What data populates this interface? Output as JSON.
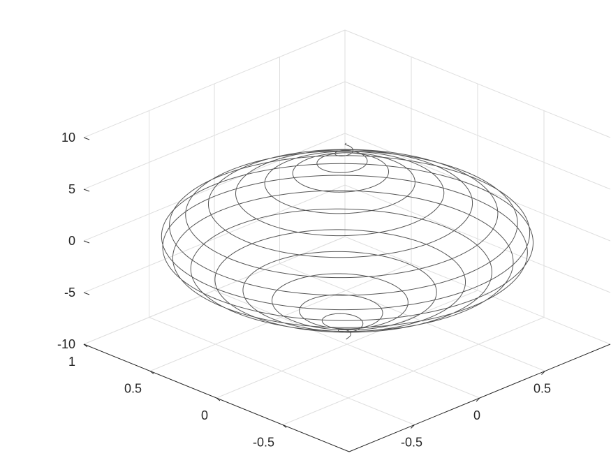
{
  "chart_data": {
    "type": "line3d",
    "title": "",
    "xlabel": "",
    "ylabel": "",
    "zlabel": "",
    "grid": true,
    "line_color": "#555555",
    "grid_color": "#dedede",
    "axis_color": "#262626",
    "xlim": [
      -1,
      1
    ],
    "ylim": [
      -1,
      1
    ],
    "zlim": [
      -10,
      10
    ],
    "x_ticks": [
      -0.5,
      0,
      0.5
    ],
    "x_tick_labels": [
      "-0.5",
      "0",
      "0.5"
    ],
    "y_ticks": [
      -0.5,
      0,
      0.5,
      1
    ],
    "y_tick_labels": [
      "-0.5",
      "0",
      "0.5",
      "1"
    ],
    "z_ticks": [
      -10,
      -5,
      0,
      5,
      10
    ],
    "z_tick_labels": [
      "-10",
      "-5",
      "0",
      "5",
      "10"
    ],
    "series": [
      {
        "curve": "helix",
        "x": "cos(t) * r(t)",
        "y": "sin(t) * r(t)",
        "z": "t / pi",
        "r": "cos(t / 20)",
        "t_range": [
          -10,
          10
        ],
        "z_range": [
          -9.5,
          9.5
        ],
        "turns": 19
      }
    ]
  }
}
